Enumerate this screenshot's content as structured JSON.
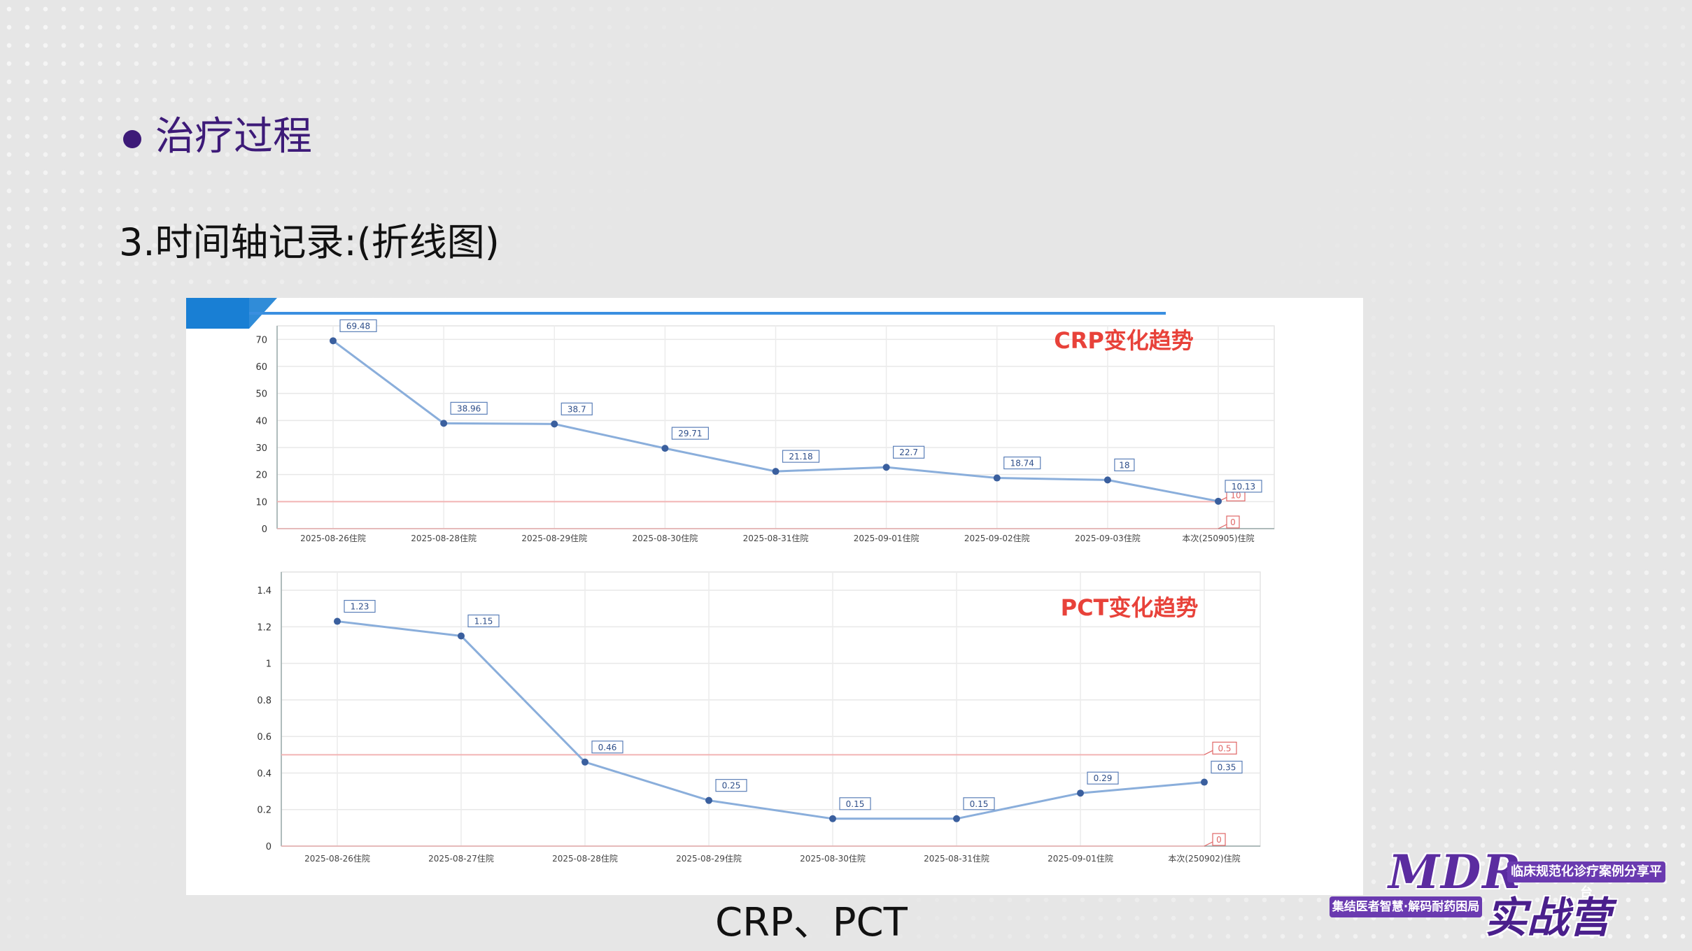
{
  "slide": {
    "section_title": "治疗过程",
    "subtitle": "3.时间轴记录:(折线图)",
    "caption": "CRP、PCT"
  },
  "logo": {
    "mark": "MDR",
    "tagline_top": "临床规范化诊疗案例分享平台",
    "tagline_bottom": "集结医者智慧·解码耐药困局",
    "camp": "实战营"
  },
  "colors": {
    "series_line": "#8aaedb",
    "series_point": "#3a5f9e",
    "reference_line": "#f2b4b4",
    "chart_title": "#e8423a",
    "section_title": "#3d1a78"
  },
  "chart_data": [
    {
      "type": "line",
      "title": "CRP变化趋势",
      "categories": [
        "2025-08-26住院",
        "2025-08-28住院",
        "2025-08-29住院",
        "2025-08-30住院",
        "2025-08-31住院",
        "2025-09-01住院",
        "2025-09-02住院",
        "2025-09-03住院",
        "本次(250905)住院"
      ],
      "series": [
        {
          "values": [
            69.48,
            38.96,
            38.7,
            29.71,
            21.18,
            22.7,
            18.74,
            18,
            10.13
          ]
        }
      ],
      "value_labels": [
        "69.48",
        "38.96",
        "38.7",
        "29.71",
        "21.18",
        "22.7",
        "18.74",
        "18",
        "10.13"
      ],
      "reference_lines": [
        {
          "value": 10,
          "label": "10"
        },
        {
          "value": 0,
          "label": "0"
        }
      ],
      "yticks": [
        "0",
        "10",
        "20",
        "30",
        "40",
        "50",
        "60",
        "70"
      ],
      "ylim": [
        0,
        75
      ],
      "grid": true
    },
    {
      "type": "line",
      "title": "PCT变化趋势",
      "categories": [
        "2025-08-26住院",
        "2025-08-27住院",
        "2025-08-28住院",
        "2025-08-29住院",
        "2025-08-30住院",
        "2025-08-31住院",
        "2025-09-01住院",
        "本次(250902)住院"
      ],
      "series": [
        {
          "values": [
            1.23,
            1.15,
            0.46,
            0.25,
            0.15,
            0.15,
            0.29,
            0.35
          ]
        }
      ],
      "value_labels": [
        "1.23",
        "1.15",
        "0.46",
        "0.25",
        "0.15",
        "0.15",
        "0.29",
        "0.35"
      ],
      "reference_lines": [
        {
          "value": 0.5,
          "label": "0.5"
        },
        {
          "value": 0,
          "label": "0"
        }
      ],
      "yticks": [
        "0",
        "0.2",
        "0.4",
        "0.6",
        "0.8",
        "1",
        "1.2",
        "1.4"
      ],
      "ylim": [
        0,
        1.5
      ],
      "grid": true
    }
  ]
}
